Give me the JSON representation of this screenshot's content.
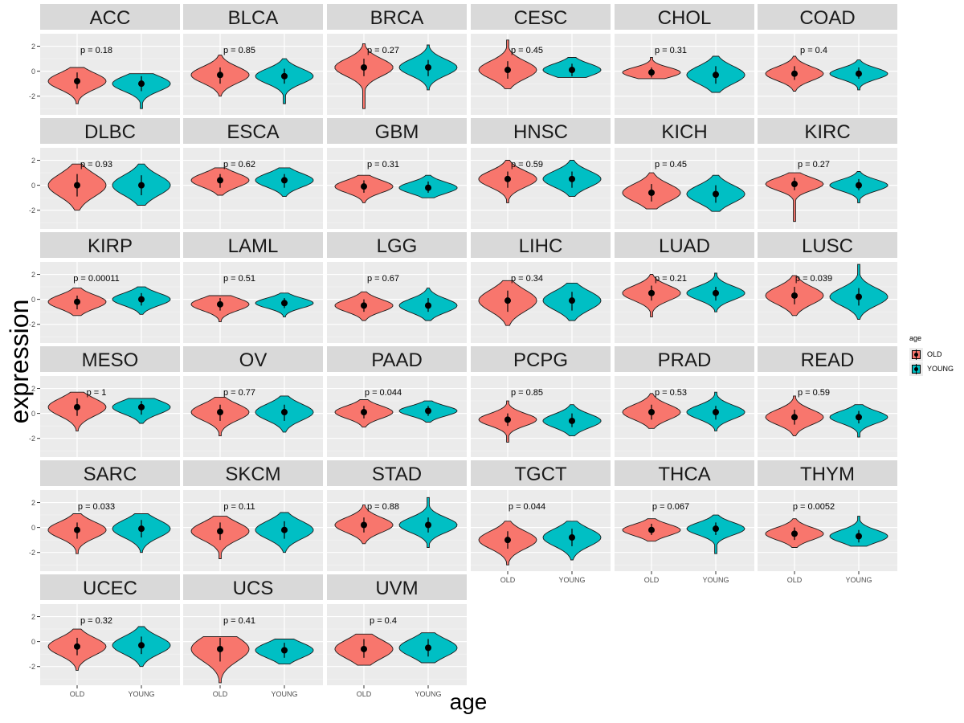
{
  "chart_data": {
    "type": "violin",
    "xlabel": "age",
    "ylabel": "expression",
    "categories": [
      "OLD",
      "YOUNG"
    ],
    "ylim": [
      -3.5,
      3.0
    ],
    "yticks": [
      -2,
      0,
      2
    ],
    "ytick_labels": [
      "-2",
      "0",
      "2"
    ],
    "grid": true,
    "legend": {
      "title": "age",
      "placement": "right",
      "entries": [
        {
          "label": "OLD",
          "color": "#F8766D"
        },
        {
          "label": "YOUNG",
          "color": "#00BFC4"
        }
      ]
    },
    "panels": [
      {
        "name": "ACC",
        "p": "p = 0.18",
        "old": {
          "mean": -0.8,
          "lo": -1.4,
          "hi": -0.1,
          "min": -2.6,
          "max": 0.3
        },
        "young": {
          "mean": -1.0,
          "lo": -1.6,
          "hi": -0.4,
          "min": -3.0,
          "max": -0.2
        }
      },
      {
        "name": "BLCA",
        "p": "p = 0.85",
        "old": {
          "mean": -0.3,
          "lo": -1.0,
          "hi": 0.3,
          "min": -2.0,
          "max": 1.3
        },
        "young": {
          "mean": -0.4,
          "lo": -1.0,
          "hi": 0.2,
          "min": -2.6,
          "max": 1.0
        }
      },
      {
        "name": "BRCA",
        "p": "p = 0.27",
        "old": {
          "mean": 0.3,
          "lo": -0.4,
          "hi": 1.0,
          "min": -3.0,
          "max": 2.2
        },
        "young": {
          "mean": 0.3,
          "lo": -0.4,
          "hi": 0.9,
          "min": -1.5,
          "max": 2.1
        }
      },
      {
        "name": "CESC",
        "p": "p = 0.45",
        "old": {
          "mean": 0.1,
          "lo": -0.6,
          "hi": 0.8,
          "min": -1.4,
          "max": 2.5
        },
        "young": {
          "mean": 0.1,
          "lo": -0.4,
          "hi": 0.6,
          "min": -0.5,
          "max": 1.1
        }
      },
      {
        "name": "CHOL",
        "p": "p = 0.31",
        "old": {
          "mean": -0.1,
          "lo": -0.5,
          "hi": 0.3,
          "min": -0.6,
          "max": 1.1
        },
        "young": {
          "mean": -0.3,
          "lo": -1.0,
          "hi": 0.4,
          "min": -1.7,
          "max": 1.2
        }
      },
      {
        "name": "COAD",
        "p": "p = 0.4",
        "old": {
          "mean": -0.2,
          "lo": -0.7,
          "hi": 0.4,
          "min": -1.6,
          "max": 1.2
        },
        "young": {
          "mean": -0.2,
          "lo": -0.6,
          "hi": 0.3,
          "min": -1.5,
          "max": 0.9
        }
      },
      {
        "name": "DLBC",
        "p": "p = 0.93",
        "old": {
          "mean": 0.0,
          "lo": -0.9,
          "hi": 0.9,
          "min": -2.0,
          "max": 1.7
        },
        "young": {
          "mean": 0.0,
          "lo": -0.8,
          "hi": 0.8,
          "min": -1.6,
          "max": 1.7
        }
      },
      {
        "name": "ESCA",
        "p": "p = 0.62",
        "old": {
          "mean": 0.4,
          "lo": -0.2,
          "hi": 0.9,
          "min": -0.8,
          "max": 1.4
        },
        "young": {
          "mean": 0.4,
          "lo": -0.2,
          "hi": 0.9,
          "min": -0.9,
          "max": 1.4
        }
      },
      {
        "name": "GBM",
        "p": "p = 0.31",
        "old": {
          "mean": -0.1,
          "lo": -0.6,
          "hi": 0.4,
          "min": -1.4,
          "max": 0.8
        },
        "young": {
          "mean": -0.2,
          "lo": -0.6,
          "hi": 0.3,
          "min": -1.0,
          "max": 0.8
        }
      },
      {
        "name": "HNSC",
        "p": "p = 0.59",
        "old": {
          "mean": 0.5,
          "lo": -0.2,
          "hi": 1.1,
          "min": -1.4,
          "max": 2.0
        },
        "young": {
          "mean": 0.5,
          "lo": -0.2,
          "hi": 1.1,
          "min": -0.9,
          "max": 2.0
        }
      },
      {
        "name": "KICH",
        "p": "p = 0.45",
        "old": {
          "mean": -0.6,
          "lo": -1.3,
          "hi": 0.1,
          "min": -1.9,
          "max": 1.0
        },
        "young": {
          "mean": -0.7,
          "lo": -1.4,
          "hi": 0.0,
          "min": -2.1,
          "max": 0.8
        }
      },
      {
        "name": "KIRC",
        "p": "p = 0.27",
        "old": {
          "mean": 0.1,
          "lo": -0.4,
          "hi": 0.6,
          "min": -2.9,
          "max": 1.0
        },
        "young": {
          "mean": 0.0,
          "lo": -0.4,
          "hi": 0.5,
          "min": -1.4,
          "max": 1.1
        }
      },
      {
        "name": "KIRP",
        "p": "p = 0.00011",
        "old": {
          "mean": -0.2,
          "lo": -0.8,
          "hi": 0.3,
          "min": -1.3,
          "max": 0.9
        },
        "young": {
          "mean": 0.0,
          "lo": -0.5,
          "hi": 0.5,
          "min": -1.2,
          "max": 1.0
        }
      },
      {
        "name": "LAML",
        "p": "p = 0.51",
        "old": {
          "mean": -0.4,
          "lo": -0.9,
          "hi": 0.1,
          "min": -1.8,
          "max": 0.3
        },
        "young": {
          "mean": -0.3,
          "lo": -0.7,
          "hi": 0.1,
          "min": -1.4,
          "max": 0.5
        }
      },
      {
        "name": "LGG",
        "p": "p = 0.67",
        "old": {
          "mean": -0.5,
          "lo": -1.0,
          "hi": 0.0,
          "min": -1.7,
          "max": 0.6
        },
        "young": {
          "mean": -0.5,
          "lo": -1.0,
          "hi": 0.1,
          "min": -1.7,
          "max": 0.9
        }
      },
      {
        "name": "LIHC",
        "p": "p = 0.34",
        "old": {
          "mean": -0.1,
          "lo": -1.0,
          "hi": 0.7,
          "min": -2.1,
          "max": 1.5
        },
        "young": {
          "mean": -0.1,
          "lo": -0.9,
          "hi": 0.6,
          "min": -1.7,
          "max": 1.3
        }
      },
      {
        "name": "LUAD",
        "p": "p = 0.21",
        "old": {
          "mean": 0.5,
          "lo": -0.1,
          "hi": 1.1,
          "min": -1.4,
          "max": 2.0
        },
        "young": {
          "mean": 0.5,
          "lo": -0.1,
          "hi": 1.0,
          "min": -1.0,
          "max": 2.1
        }
      },
      {
        "name": "LUSC",
        "p": "p = 0.039",
        "old": {
          "mean": 0.3,
          "lo": -0.4,
          "hi": 1.0,
          "min": -1.3,
          "max": 1.9
        },
        "young": {
          "mean": 0.2,
          "lo": -0.5,
          "hi": 0.9,
          "min": -1.6,
          "max": 2.8
        }
      },
      {
        "name": "MESO",
        "p": "p = 1",
        "old": {
          "mean": 0.5,
          "lo": -0.2,
          "hi": 1.2,
          "min": -1.4,
          "max": 1.7
        },
        "young": {
          "mean": 0.5,
          "lo": -0.1,
          "hi": 1.0,
          "min": -0.8,
          "max": 1.2
        }
      },
      {
        "name": "OV",
        "p": "p = 0.77",
        "old": {
          "mean": 0.1,
          "lo": -0.6,
          "hi": 0.7,
          "min": -1.8,
          "max": 1.3
        },
        "young": {
          "mean": 0.1,
          "lo": -0.6,
          "hi": 0.7,
          "min": -1.5,
          "max": 1.4
        }
      },
      {
        "name": "PAAD",
        "p": "p = 0.044",
        "old": {
          "mean": 0.1,
          "lo": -0.4,
          "hi": 0.6,
          "min": -1.1,
          "max": 1.1
        },
        "young": {
          "mean": 0.2,
          "lo": -0.2,
          "hi": 0.6,
          "min": -0.7,
          "max": 1.0
        }
      },
      {
        "name": "PCPG",
        "p": "p = 0.85",
        "old": {
          "mean": -0.5,
          "lo": -1.0,
          "hi": 0.0,
          "min": -2.3,
          "max": 1.0
        },
        "young": {
          "mean": -0.6,
          "lo": -1.1,
          "hi": 0.0,
          "min": -1.8,
          "max": 0.7
        }
      },
      {
        "name": "PRAD",
        "p": "p = 0.53",
        "old": {
          "mean": 0.1,
          "lo": -0.5,
          "hi": 0.7,
          "min": -1.2,
          "max": 1.6
        },
        "young": {
          "mean": 0.1,
          "lo": -0.5,
          "hi": 0.6,
          "min": -1.4,
          "max": 1.7
        }
      },
      {
        "name": "READ",
        "p": "p = 0.59",
        "old": {
          "mean": -0.3,
          "lo": -0.9,
          "hi": 0.3,
          "min": -1.8,
          "max": 1.4
        },
        "young": {
          "mean": -0.3,
          "lo": -0.8,
          "hi": 0.2,
          "min": -1.9,
          "max": 0.7
        }
      },
      {
        "name": "SARC",
        "p": "p = 0.033",
        "old": {
          "mean": -0.2,
          "lo": -0.9,
          "hi": 0.4,
          "min": -2.1,
          "max": 1.1
        },
        "young": {
          "mean": -0.1,
          "lo": -0.8,
          "hi": 0.6,
          "min": -2.0,
          "max": 1.1
        }
      },
      {
        "name": "SKCM",
        "p": "p = 0.11",
        "old": {
          "mean": -0.3,
          "lo": -1.0,
          "hi": 0.4,
          "min": -2.5,
          "max": 0.9
        },
        "young": {
          "mean": -0.2,
          "lo": -0.9,
          "hi": 0.5,
          "min": -2.0,
          "max": 1.2
        }
      },
      {
        "name": "STAD",
        "p": "p = 0.88",
        "old": {
          "mean": 0.2,
          "lo": -0.4,
          "hi": 0.8,
          "min": -1.3,
          "max": 1.8
        },
        "young": {
          "mean": 0.2,
          "lo": -0.4,
          "hi": 0.8,
          "min": -1.6,
          "max": 2.4
        }
      },
      {
        "name": "TGCT",
        "p": "p = 0.044",
        "old": {
          "mean": -1.0,
          "lo": -1.7,
          "hi": -0.3,
          "min": -3.0,
          "max": 0.5
        },
        "young": {
          "mean": -0.8,
          "lo": -1.5,
          "hi": -0.1,
          "min": -2.6,
          "max": 0.5
        }
      },
      {
        "name": "THCA",
        "p": "p = 0.067",
        "old": {
          "mean": -0.2,
          "lo": -0.6,
          "hi": 0.3,
          "min": -1.1,
          "max": 0.7
        },
        "young": {
          "mean": -0.1,
          "lo": -0.6,
          "hi": 0.4,
          "min": -2.1,
          "max": 1.0
        }
      },
      {
        "name": "THYM",
        "p": "p = 0.0052",
        "old": {
          "mean": -0.5,
          "lo": -1.0,
          "hi": 0.0,
          "min": -1.6,
          "max": 0.7
        },
        "young": {
          "mean": -0.7,
          "lo": -1.2,
          "hi": -0.2,
          "min": -1.5,
          "max": 0.9
        }
      },
      {
        "name": "UCEC",
        "p": "p = 0.32",
        "old": {
          "mean": -0.4,
          "lo": -1.1,
          "hi": 0.3,
          "min": -2.3,
          "max": 1.0
        },
        "young": {
          "mean": -0.3,
          "lo": -1.0,
          "hi": 0.4,
          "min": -2.0,
          "max": 1.2
        }
      },
      {
        "name": "UCS",
        "p": "p = 0.41",
        "old": {
          "mean": -0.6,
          "lo": -1.6,
          "hi": 0.3,
          "min": -3.3,
          "max": 0.4
        },
        "young": {
          "mean": -0.7,
          "lo": -1.3,
          "hi": -0.1,
          "min": -1.8,
          "max": 0.2
        }
      },
      {
        "name": "UVM",
        "p": "p = 0.4",
        "old": {
          "mean": -0.6,
          "lo": -1.3,
          "hi": 0.2,
          "min": -1.9,
          "max": 0.6
        },
        "young": {
          "mean": -0.5,
          "lo": -1.2,
          "hi": 0.2,
          "min": -1.7,
          "max": 0.7
        }
      }
    ]
  }
}
